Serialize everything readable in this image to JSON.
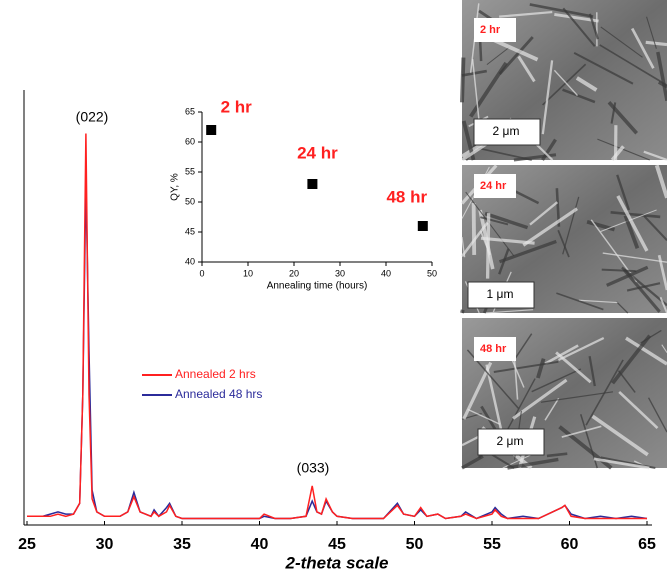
{
  "chart_data": [
    {
      "type": "line",
      "xlabel": "2-theta scale",
      "x": [
        25,
        26,
        26.5,
        27,
        27.5,
        28,
        28.4,
        28.6,
        28.8,
        29,
        29.2,
        29.5,
        30,
        31,
        31.5,
        31.9,
        32.3,
        33,
        33.2,
        33.5,
        34,
        34.2,
        34.6,
        35,
        36,
        38,
        40,
        40.3,
        41,
        42,
        43,
        43.4,
        43.7,
        44,
        44.3,
        44.7,
        45,
        46,
        47,
        48,
        48.9,
        49.3,
        50,
        50.4,
        50.8,
        51.5,
        52,
        53,
        53.3,
        54,
        55,
        55.2,
        55.6,
        56,
        57,
        58,
        59.5,
        59.7,
        60.1,
        61,
        62,
        63,
        64,
        65
      ],
      "series": [
        {
          "name": "Annealed 48 hrs",
          "color": "#2b2b9a",
          "values": [
            2,
            2,
            2.5,
            3,
            2.5,
            2.5,
            5,
            30,
            79,
            40,
            8,
            3,
            2,
            2,
            3,
            7.5,
            3,
            2,
            3.5,
            2,
            4,
            5,
            2,
            1.5,
            1.5,
            1.5,
            1.5,
            2,
            1.5,
            1.5,
            2,
            5.5,
            3,
            2.5,
            5.5,
            3,
            2,
            1.5,
            1.5,
            1.5,
            5,
            2.5,
            2,
            3.5,
            2,
            2.5,
            1.5,
            2,
            3,
            1.5,
            3,
            4,
            2.5,
            1.5,
            2,
            1.5,
            4,
            4.5,
            2.5,
            1.5,
            2,
            1.5,
            2,
            1.5
          ]
        },
        {
          "name": "Annealed 2 hrs",
          "color": "#ff2020",
          "values": [
            2,
            2,
            2,
            2.5,
            2,
            2.5,
            5,
            30,
            90,
            30,
            6,
            3,
            2,
            2,
            3,
            6.5,
            3,
            2,
            3,
            2,
            3,
            4.5,
            2,
            1.5,
            1.5,
            1.5,
            1.5,
            2.5,
            1.5,
            1.5,
            2,
            9,
            3,
            2.5,
            6,
            3,
            2,
            1.5,
            1.5,
            1.5,
            4.5,
            2.5,
            2,
            4,
            2,
            2.5,
            1.5,
            2,
            2.5,
            1.5,
            2.5,
            3.5,
            2,
            1.5,
            1.5,
            1.5,
            4,
            4.5,
            2,
            1.5,
            1.5,
            1.5,
            1.5,
            1.5
          ]
        }
      ],
      "xlim": [
        25,
        65
      ],
      "xticks": [
        25,
        30,
        35,
        40,
        45,
        50,
        55,
        60,
        65
      ],
      "ylim": [
        0,
        100
      ],
      "annotations": [
        "(022)",
        "(033)"
      ],
      "legend": "center-left"
    },
    {
      "type": "scatter",
      "xlabel": "Annealing time (hours)",
      "ylabel": "QY, %",
      "x": [
        2,
        24,
        48
      ],
      "values": [
        62,
        53,
        46
      ],
      "point_labels": [
        "2 hr",
        "24 hr",
        "48 hr"
      ],
      "color": "#000000",
      "label_color": "#ff2020",
      "xlim": [
        0,
        50
      ],
      "xticks": [
        0,
        10,
        20,
        30,
        40,
        50
      ],
      "ylim": [
        40,
        65
      ],
      "yticks": [
        40,
        45,
        50,
        55,
        60,
        65
      ]
    }
  ],
  "images": [
    {
      "label": "2 hr",
      "scale": "2 μm"
    },
    {
      "label": "24 hr",
      "scale": "1 μm"
    },
    {
      "label": "48 hr",
      "scale": "2 μm"
    }
  ]
}
